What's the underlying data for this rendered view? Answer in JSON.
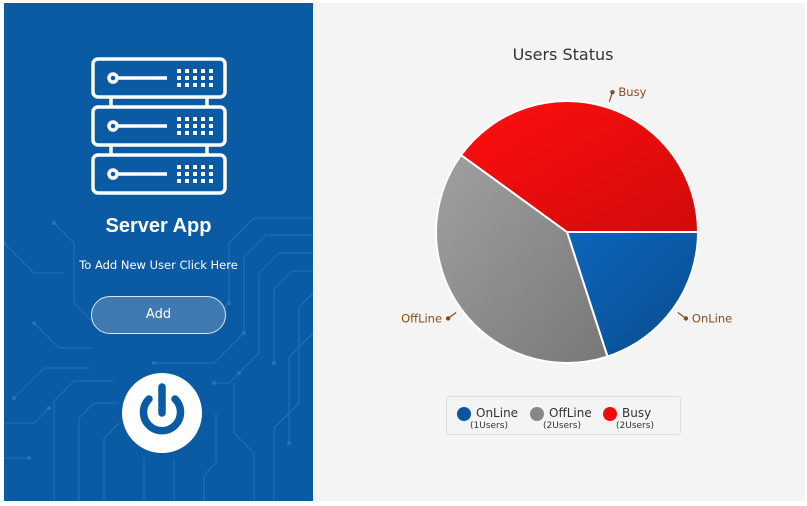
{
  "left_panel": {
    "title": "Server App",
    "subtitle": "To Add New User Click Here",
    "add_button_label": "Add",
    "icons": {
      "server": "server-rack-icon",
      "power": "power-icon"
    },
    "colors": {
      "panel_background": "#0a5ba3",
      "button_background": "#3e79b1"
    }
  },
  "chart_data": {
    "type": "pie",
    "title": "Users Status",
    "start_angle_deg": 0,
    "direction": "clockwise",
    "slices": [
      {
        "label": "OnLine",
        "value": 1,
        "color": "#0b56a0",
        "legend_count": "(1Users)"
      },
      {
        "label": "OffLine",
        "value": 2,
        "color": "#888888",
        "legend_count": "(2Users)"
      },
      {
        "label": "Busy",
        "value": 2,
        "color": "#ee0c0c",
        "legend_count": "(2Users)"
      }
    ],
    "legend": {
      "placement": "bottom-center"
    }
  }
}
